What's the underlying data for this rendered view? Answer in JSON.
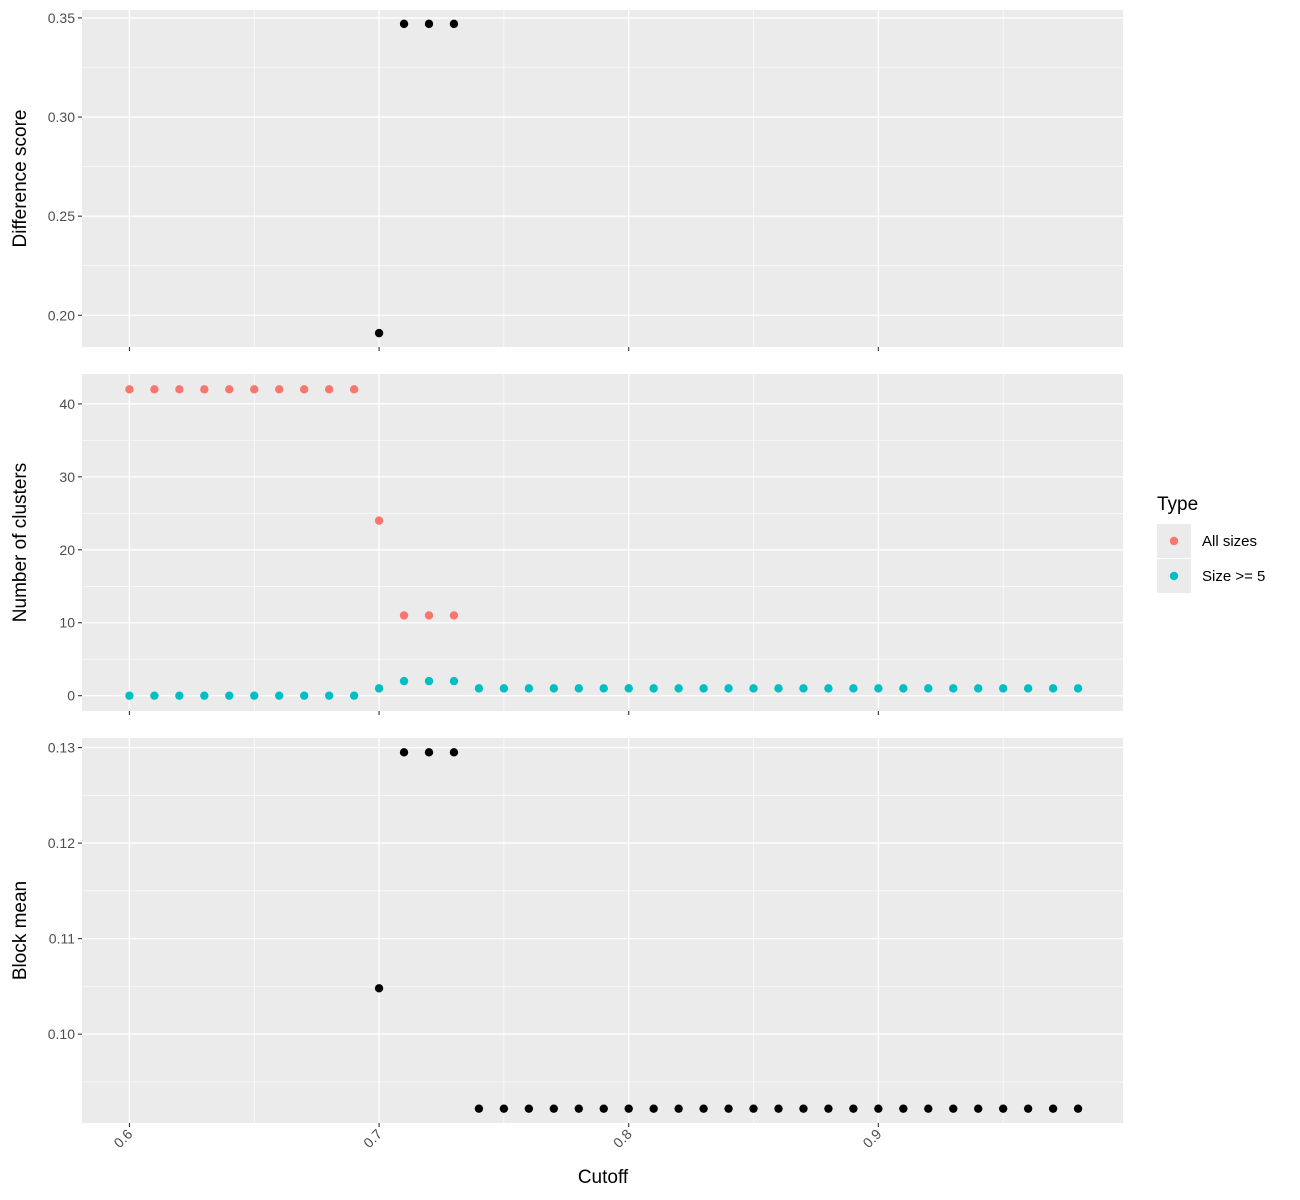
{
  "chart_data": {
    "type": "scatter",
    "xlabel": "Cutoff",
    "x_ticks": [
      0.6,
      0.7,
      0.8,
      0.9
    ],
    "x_tick_labels": [
      "0.6",
      "0.7",
      "0.8",
      "0.9"
    ],
    "xlim": [
      0.581,
      0.998
    ],
    "panel_background": "#ebebeb",
    "grid_color": "#ffffff",
    "grid": true,
    "legend": {
      "title": "Type",
      "position": "right",
      "entries": [
        {
          "label": "All sizes",
          "color": "#f8766d"
        },
        {
          "label": "Size >= 5",
          "color": "#00bfc4"
        }
      ]
    },
    "panels": [
      {
        "ylabel": "Difference score",
        "ylim": [
          0.184,
          0.354
        ],
        "y_ticks": [
          0.2,
          0.25,
          0.3,
          0.35
        ],
        "y_tick_labels": [
          "0.20",
          "0.25",
          "0.30",
          "0.35"
        ],
        "series": [
          {
            "color": "#000000",
            "x": [
              0.7,
              0.71,
              0.72,
              0.73
            ],
            "y": [
              0.191,
              0.347,
              0.347,
              0.347
            ]
          }
        ]
      },
      {
        "ylabel": "Number of clusters",
        "ylim": [
          -2.1,
          44.1
        ],
        "y_ticks": [
          0,
          10,
          20,
          30,
          40
        ],
        "y_tick_labels": [
          "0",
          "10",
          "20",
          "30",
          "40"
        ],
        "series": [
          {
            "name": "All sizes",
            "color": "#f8766d",
            "x": [
              0.6,
              0.61,
              0.62,
              0.63,
              0.64,
              0.65,
              0.66,
              0.67,
              0.68,
              0.69,
              0.7,
              0.71,
              0.72,
              0.73
            ],
            "y": [
              42,
              42,
              42,
              42,
              42,
              42,
              42,
              42,
              42,
              42,
              24,
              11,
              11,
              11
            ]
          },
          {
            "name": "Size >= 5",
            "color": "#00bfc4",
            "x": [
              0.6,
              0.61,
              0.62,
              0.63,
              0.64,
              0.65,
              0.66,
              0.67,
              0.68,
              0.69,
              0.7,
              0.71,
              0.72,
              0.73,
              0.74,
              0.75,
              0.76,
              0.77,
              0.78,
              0.79,
              0.8,
              0.81,
              0.82,
              0.83,
              0.84,
              0.85,
              0.86,
              0.87,
              0.88,
              0.89,
              0.9,
              0.91,
              0.92,
              0.93,
              0.94,
              0.95,
              0.96,
              0.97,
              0.98
            ],
            "y": [
              0,
              0,
              0,
              0,
              0,
              0,
              0,
              0,
              0,
              0,
              1,
              2,
              2,
              2,
              1,
              1,
              1,
              1,
              1,
              1,
              1,
              1,
              1,
              1,
              1,
              1,
              1,
              1,
              1,
              1,
              1,
              1,
              1,
              1,
              1,
              1,
              1,
              1,
              1
            ]
          }
        ]
      },
      {
        "ylabel": "Block mean",
        "ylim": [
          0.0907,
          0.131
        ],
        "y_ticks": [
          0.1,
          0.11,
          0.12,
          0.13
        ],
        "y_tick_labels": [
          "0.10",
          "0.11",
          "0.12",
          "0.13"
        ],
        "series": [
          {
            "color": "#000000",
            "x": [
              0.7,
              0.71,
              0.72,
              0.73,
              0.74,
              0.75,
              0.76,
              0.77,
              0.78,
              0.79,
              0.8,
              0.81,
              0.82,
              0.83,
              0.84,
              0.85,
              0.86,
              0.87,
              0.88,
              0.89,
              0.9,
              0.91,
              0.92,
              0.93,
              0.94,
              0.95,
              0.96,
              0.97,
              0.98
            ],
            "y": [
              0.1048,
              0.1295,
              0.1295,
              0.1295,
              0.0922,
              0.0922,
              0.0922,
              0.0922,
              0.0922,
              0.0922,
              0.0922,
              0.0922,
              0.0922,
              0.0922,
              0.0922,
              0.0922,
              0.0922,
              0.0922,
              0.0922,
              0.0922,
              0.0922,
              0.0922,
              0.0922,
              0.0922,
              0.0922,
              0.0922,
              0.0922,
              0.0922,
              0.0922
            ]
          }
        ]
      }
    ]
  }
}
